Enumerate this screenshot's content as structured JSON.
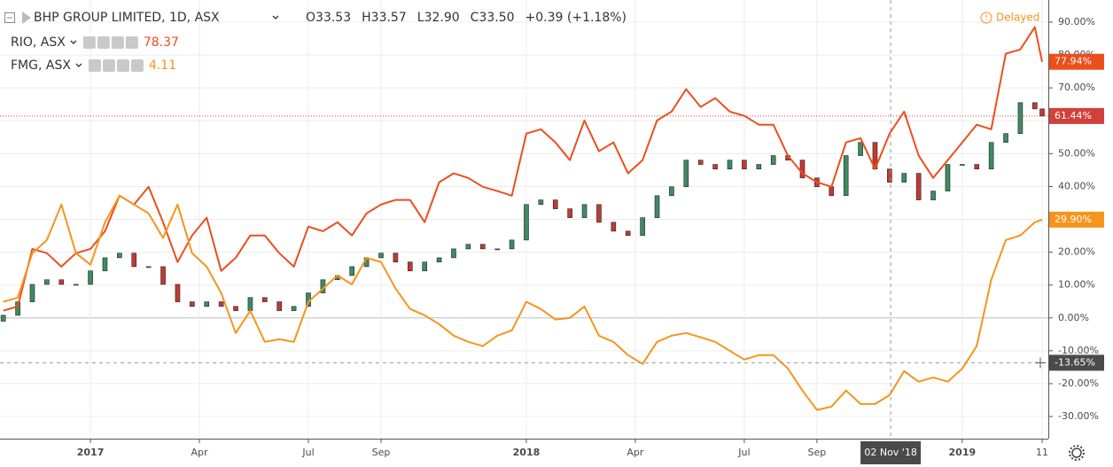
{
  "header": {
    "ohlc": [
      {
        "key": "O",
        "value": "33.53"
      },
      {
        "key": "H",
        "value": "33.57"
      },
      {
        "key": "L",
        "value": "32.90"
      },
      {
        "key": "C",
        "value": "33.50"
      }
    ],
    "change": "+0.39 (+1.18%)",
    "status": "Delayed"
  },
  "chart_data": {
    "type": "candlestick",
    "x": [
      -2.4,
      -2,
      -1.6,
      -1.2,
      -0.8,
      -0.4,
      0,
      0.4,
      0.8,
      1.2,
      1.6,
      2,
      2.4,
      2.8,
      3.2,
      3.6,
      4,
      4.4,
      4.8,
      5.2,
      5.6,
      6,
      6.4,
      6.8,
      7.2,
      7.6,
      8,
      8.4,
      8.8,
      9.2,
      9.6,
      10,
      10.4,
      10.8,
      11.2,
      11.6,
      12,
      12.4,
      12.8,
      13.2,
      13.6,
      14,
      14.4,
      14.8,
      15.2,
      15.6,
      16,
      16.4,
      16.8,
      17.2,
      17.6,
      18,
      18.4,
      18.8,
      19.2,
      19.6,
      20,
      20.4,
      20.8,
      21.2,
      21.6,
      22,
      22.4,
      22.8,
      23.2,
      23.6,
      24,
      24.4,
      24.8,
      25.2,
      25.6,
      26,
      26.2
    ],
    "xlim": [
      -2.49,
      26.37
    ],
    "ylim": [
      -36.74,
      96.74
    ],
    "xticks": [
      {
        "value": 0,
        "label": "2017"
      },
      {
        "value": 3,
        "label": "Apr"
      },
      {
        "value": 6,
        "label": "Jul"
      },
      {
        "value": 8,
        "label": "Sep"
      },
      {
        "value": 12,
        "label": "2018"
      },
      {
        "value": 15,
        "label": "Apr"
      },
      {
        "value": 18,
        "label": "Jul"
      },
      {
        "value": 20,
        "label": "Sep"
      },
      {
        "value": 24,
        "label": "2019"
      },
      {
        "value": 26.2,
        "label": "11"
      }
    ],
    "yticks": [
      {
        "value": -30,
        "label": "-30.00%"
      },
      {
        "value": -20,
        "label": "-20.00%"
      },
      {
        "value": -10,
        "label": "-10.00%"
      },
      {
        "value": 0,
        "label": "0.00%"
      },
      {
        "value": 10,
        "label": "10.00%"
      },
      {
        "value": 20,
        "label": "20.00%"
      },
      {
        "value": 30,
        "label": "30.00%"
      },
      {
        "value": 40,
        "label": "40.00%"
      },
      {
        "value": 50,
        "label": "50.00%"
      },
      {
        "value": 60,
        "label": "60.00%"
      },
      {
        "value": 70,
        "label": "70.00%"
      },
      {
        "value": 80,
        "label": "80.00%"
      },
      {
        "value": 90,
        "label": "90.00%"
      }
    ],
    "grid": true,
    "crosshair": {
      "x": {
        "value": 22.03,
        "label": "02 Nov '18"
      },
      "y": {
        "value": -13.65,
        "label": "-13.65%"
      }
    },
    "series": [
      {
        "name": "BHP GROUP LIMITED, 1D, ASX",
        "type": "candlestick",
        "up_color": "#3f8a63",
        "down_color": "#c23a33",
        "label_color": "#d0413a",
        "last_label": "61.44%",
        "open": [
          -1,
          0.8,
          4.9,
          10.2,
          11.6,
          10.2,
          10.2,
          14.3,
          18.3,
          19.7,
          15.6,
          15.6,
          10.2,
          4.9,
          3.5,
          4.9,
          3.5,
          2.2,
          6.2,
          4.9,
          2.2,
          3.5,
          7.6,
          11.6,
          12.9,
          15.6,
          18.3,
          19.7,
          17,
          14.3,
          17,
          18.3,
          21,
          22.4,
          21,
          21,
          23.7,
          34.5,
          35.9,
          33.2,
          30.5,
          34.5,
          29.1,
          26.4,
          25.1,
          30.5,
          37.2,
          39.9,
          48,
          46.7,
          45.3,
          48,
          45.3,
          46.7,
          49.4,
          48,
          42.6,
          39.9,
          37.2,
          49.4,
          53.4,
          45.3,
          41.3,
          44,
          35.9,
          38.6,
          46.7,
          46.7,
          45.3,
          53.4,
          56.1,
          65.5,
          63.6
        ],
        "values": [
          0.8,
          4.9,
          10.2,
          11.6,
          10.2,
          10.2,
          14.3,
          18.3,
          19.7,
          15.6,
          15.6,
          10.2,
          4.9,
          3.5,
          4.9,
          3.5,
          2.2,
          6.2,
          4.9,
          2.2,
          3.5,
          7.6,
          11.6,
          12.9,
          15.6,
          18.3,
          19.7,
          17,
          14.3,
          17,
          18.3,
          21,
          22.4,
          21,
          21,
          23.7,
          34.5,
          35.9,
          33.2,
          30.5,
          34.5,
          29.1,
          26.4,
          25.1,
          30.5,
          37.2,
          39.9,
          48,
          46.7,
          45.3,
          48,
          45.3,
          46.7,
          49.4,
          48,
          42.6,
          39.9,
          37.2,
          49.4,
          53.4,
          45.3,
          41.3,
          44,
          35.9,
          38.6,
          46.7,
          46.7,
          45.3,
          53.4,
          56.1,
          65.5,
          63.6,
          61.44
        ]
      },
      {
        "name": "RIO, ASX",
        "type": "line",
        "color": "#ec4e1c",
        "last_price": "78.37",
        "last_label": "77.94%",
        "values": [
          2.2,
          3.5,
          21,
          19.7,
          15.6,
          19.7,
          21,
          26.4,
          37.2,
          34.5,
          39.9,
          29.1,
          17,
          25.1,
          30.5,
          14.3,
          18.3,
          25.1,
          25.1,
          19.7,
          15.6,
          27.8,
          26.4,
          29.1,
          25.1,
          31.8,
          34.5,
          35.9,
          35.9,
          29.1,
          41.3,
          44,
          42.6,
          39.9,
          38.6,
          37.2,
          56.1,
          57.4,
          53.4,
          48,
          60.1,
          50.7,
          53.4,
          44,
          48,
          60.1,
          62.8,
          69.6,
          64.2,
          66.9,
          62.8,
          61.5,
          58.8,
          58.8,
          49.4,
          44,
          41.3,
          39.9,
          53.4,
          54.7,
          45.3,
          56.1,
          62.8,
          49.4,
          42.6,
          48,
          53.4,
          58.8,
          57.4,
          80.4,
          81.7,
          88.5,
          77.94
        ]
      },
      {
        "name": "FMG, ASX",
        "type": "line",
        "color": "#f7941d",
        "last_price": "4.11",
        "last_label": "29.90%",
        "values": [
          4.9,
          6.2,
          19.7,
          23.7,
          34.5,
          19.7,
          16.2,
          29.1,
          37.2,
          34.5,
          31.8,
          24.3,
          34.5,
          19.7,
          15.6,
          7.6,
          -4.6,
          2.2,
          -7.3,
          -6.5,
          -7.3,
          4.9,
          8.9,
          12.9,
          10.2,
          18.3,
          17,
          8.9,
          2.7,
          0.8,
          -1.9,
          -5.4,
          -7.3,
          -8.6,
          -5.4,
          -3.8,
          4.9,
          2.7,
          -0.5,
          0,
          3.5,
          -5.4,
          -7.3,
          -11.3,
          -14,
          -7.3,
          -5.4,
          -4.6,
          -5.9,
          -7.3,
          -10,
          -12.7,
          -11.3,
          -11.3,
          -15.4,
          -22.1,
          -28,
          -27,
          -22.1,
          -26.2,
          -26.2,
          -23.5,
          -16.2,
          -19.4,
          -18.1,
          -19.4,
          -15.4,
          -8.6,
          11.6,
          23.7,
          25.1,
          29.1,
          29.9
        ]
      }
    ]
  }
}
